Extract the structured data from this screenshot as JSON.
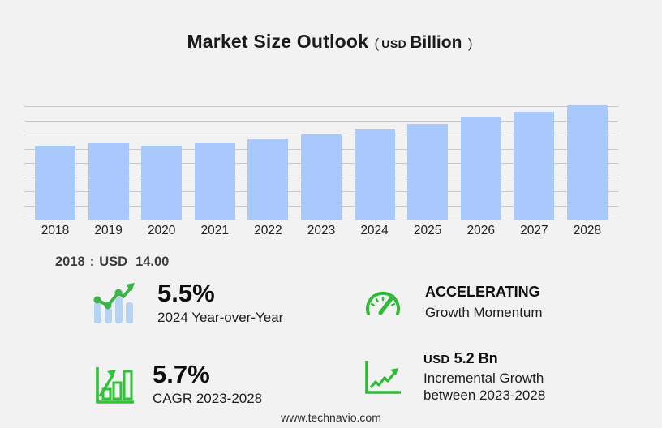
{
  "title": {
    "main": "Market Size Outlook",
    "paren_open": "(",
    "currency": "USD",
    "unit": "Billion",
    "paren_close": ")"
  },
  "chart_data": {
    "type": "bar",
    "title": "Market Size Outlook (USD Billion)",
    "xlabel": "",
    "ylabel": "",
    "categories": [
      "2018",
      "2019",
      "2020",
      "2021",
      "2022",
      "2023",
      "2024",
      "2025",
      "2026",
      "2027",
      "2028"
    ],
    "values": [
      14.0,
      14.6,
      14.0,
      14.6,
      15.4,
      16.3,
      17.2,
      18.1,
      19.4,
      20.3,
      21.5
    ],
    "unit": "USD Billion",
    "ylim": [
      0,
      22
    ],
    "gridline_count": 9,
    "grid": true,
    "legend": false,
    "bar_color": "#a9c8fc"
  },
  "annotation": {
    "year": "2018",
    "separator": ":",
    "currency": "USD",
    "value": "14.00"
  },
  "stats": [
    {
      "value": "5.5%",
      "label": "2024 Year-over-Year",
      "icon": "trend-bars-icon"
    },
    {
      "value": "ACCELERATING",
      "label": "Growth Momentum",
      "icon": "speedometer-icon"
    },
    {
      "value": "5.7%",
      "label": "CAGR 2023-2028",
      "icon": "growth-chart-icon"
    },
    {
      "value_prefix": "USD",
      "value": "5.2 Bn",
      "label_line1": "Incremental Growth",
      "label_line2": "between 2023-2028",
      "icon": "line-growth-icon"
    }
  ],
  "footer": {
    "url": "www.technavio.com"
  },
  "colors": {
    "background": "#f2f2f3",
    "bar_fill": "#a9c8fc",
    "gridline": "#c9c9cd",
    "green": "#2fba35",
    "icon_blue": "#b7d3f3",
    "heading_text": "#1a1a1a",
    "body_text": "#1d1d1d",
    "annotation_text": "#3d3d3d"
  }
}
